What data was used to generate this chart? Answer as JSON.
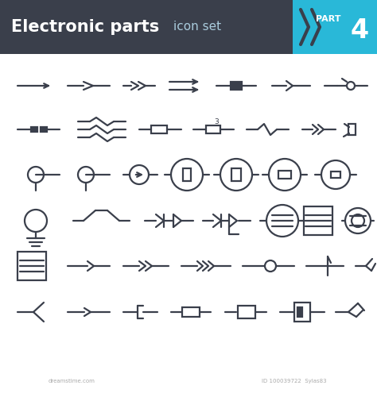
{
  "title": "Electronic parts",
  "subtitle": "icon set",
  "part": "PART 4",
  "bg_color": "#ffffff",
  "header_bg": "#3a3f4b",
  "corner_bg": "#29b8d8",
  "line_color": "#3a3f4b",
  "lw": 1.6,
  "figsize": [
    4.74,
    5.0
  ],
  "dpi": 100
}
